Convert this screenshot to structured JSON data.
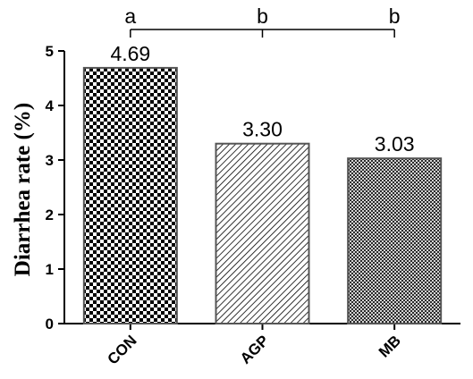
{
  "chart_data": {
    "type": "bar",
    "categories": [
      "CON",
      "AGP",
      "MB"
    ],
    "values": [
      4.69,
      3.3,
      3.03
    ],
    "data_labels": [
      "4.69",
      "3.30",
      "3.03"
    ],
    "patterns": [
      "checkerboard",
      "diagonal-hatch",
      "crosshatch"
    ],
    "significance_letters": [
      "a",
      "b",
      "b"
    ],
    "xlabel": "",
    "ylabel": "Diarrhea rate (%)",
    "ylim": [
      0,
      5
    ],
    "yticks": [
      "0",
      "1",
      "2",
      "3",
      "4",
      "5"
    ],
    "grid": false,
    "legend": "none"
  }
}
